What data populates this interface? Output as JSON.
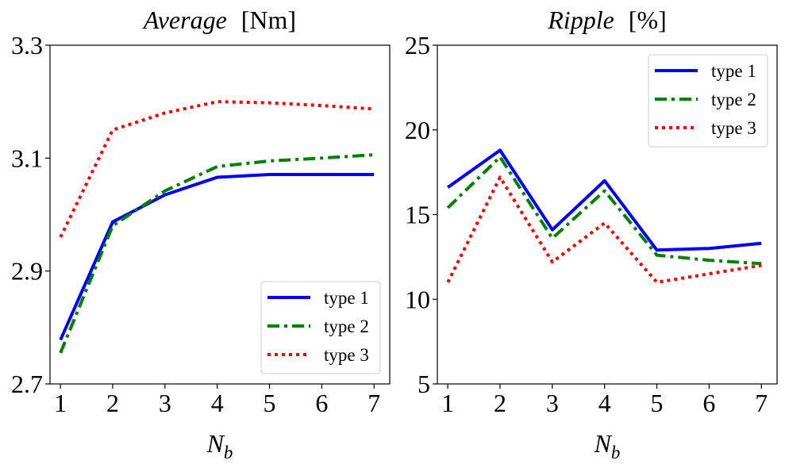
{
  "chart_data": [
    {
      "type": "line",
      "title_name": "Average",
      "title_unit": "[Nm]",
      "xlabel_main": "N",
      "xlabel_sub": "b",
      "ylabel": "",
      "xlim": [
        0.8,
        7.3
      ],
      "ylim": [
        2.7,
        3.3
      ],
      "xticks": [
        1,
        2,
        3,
        4,
        5,
        6,
        7
      ],
      "yticks": [
        "2.7",
        "2.9",
        "3.1",
        "3.3"
      ],
      "legend_position": "lower-right",
      "x": [
        1,
        2,
        3,
        4,
        5,
        6,
        7
      ],
      "series": [
        {
          "name": "type 1",
          "color": "#0000ff",
          "dash": "solid",
          "values": [
            2.778,
            2.987,
            3.035,
            3.066,
            3.071,
            3.071,
            3.071
          ]
        },
        {
          "name": "type 2",
          "color": "#008000",
          "dash": "dashdot",
          "values": [
            2.755,
            2.98,
            3.042,
            3.085,
            3.095,
            3.1,
            3.106
          ]
        },
        {
          "name": "type 3",
          "color": "#ff0000",
          "dash": "dotted",
          "values": [
            2.96,
            3.15,
            3.18,
            3.2,
            3.198,
            3.193,
            3.187
          ]
        }
      ]
    },
    {
      "type": "line",
      "title_name": "Ripple",
      "title_unit": "[%]",
      "xlabel_main": "N",
      "xlabel_sub": "b",
      "ylabel": "",
      "xlim": [
        0.8,
        7.3
      ],
      "ylim": [
        5,
        25
      ],
      "xticks": [
        1,
        2,
        3,
        4,
        5,
        6,
        7
      ],
      "yticks": [
        "5",
        "10",
        "15",
        "20",
        "25"
      ],
      "legend_position": "top-right",
      "x": [
        1,
        2,
        3,
        4,
        5,
        6,
        7
      ],
      "series": [
        {
          "name": "type 1",
          "color": "#0000ff",
          "dash": "solid",
          "values": [
            16.6,
            18.8,
            14.1,
            17.0,
            12.9,
            13.0,
            13.3
          ]
        },
        {
          "name": "type 2",
          "color": "#008000",
          "dash": "dashdot",
          "values": [
            15.4,
            18.4,
            13.6,
            16.4,
            12.6,
            12.3,
            12.1
          ]
        },
        {
          "name": "type 3",
          "color": "#ff0000",
          "dash": "dotted",
          "values": [
            11.0,
            17.2,
            12.2,
            14.5,
            11.0,
            11.5,
            12.0
          ]
        }
      ]
    }
  ]
}
